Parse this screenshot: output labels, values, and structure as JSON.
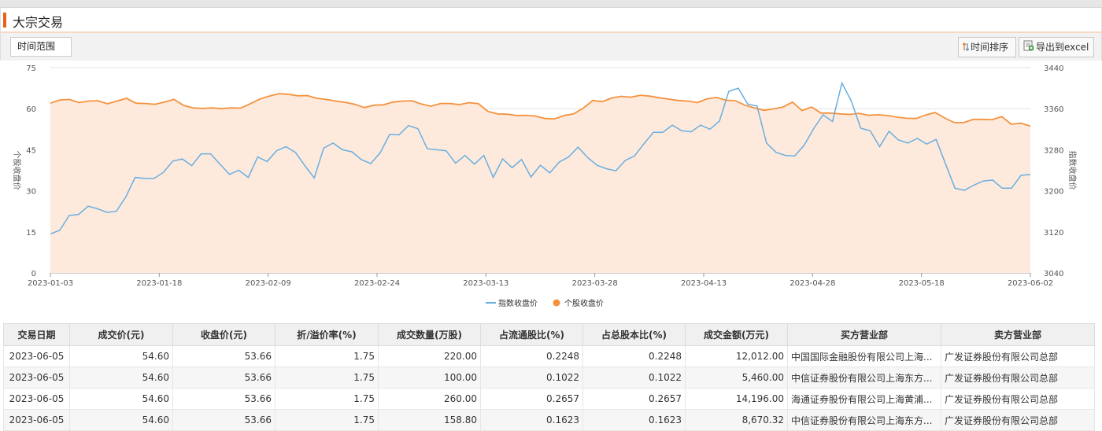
{
  "header": {
    "title": "大宗交易"
  },
  "toolbar": {
    "range_label": "时间范围",
    "sort_label": "时间排序",
    "export_label": "导出到excel"
  },
  "colors": {
    "accent": "#e8601a",
    "index_line": "#6aaee0",
    "stock_line": "#f5923e",
    "area_fill": "#fdeadc"
  },
  "chart_data": {
    "type": "line",
    "title": "",
    "ylabel_left": "个股收盘价",
    "ylabel_right": "指数收盘价",
    "ylim_left": [
      0,
      75
    ],
    "ylim_right": [
      3040,
      3440
    ],
    "yticks_left": [
      0,
      15,
      30,
      45,
      60,
      75
    ],
    "yticks_right": [
      3040,
      3120,
      3200,
      3280,
      3360,
      3440
    ],
    "xticks": [
      "2023-01-03",
      "2023-01-18",
      "2023-02-09",
      "2023-02-24",
      "2023-03-13",
      "2023-03-28",
      "2023-04-13",
      "2023-04-28",
      "2023-05-18",
      "2023-06-02"
    ],
    "legend_position": "bottom",
    "grid": true,
    "series": [
      {
        "name": "指数收盘价",
        "axis": "right",
        "values": [
          3116,
          3123,
          3152,
          3154,
          3170,
          3165,
          3158,
          3160,
          3188,
          3226,
          3224,
          3224,
          3236,
          3258,
          3262,
          3249,
          3272,
          3272,
          3252,
          3232,
          3240,
          3226,
          3266,
          3257,
          3278,
          3286,
          3275,
          3249,
          3225,
          3283,
          3293,
          3280,
          3276,
          3261,
          3253,
          3274,
          3310,
          3309,
          3327,
          3321,
          3282,
          3280,
          3278,
          3254,
          3269,
          3252,
          3269,
          3226,
          3262,
          3245,
          3261,
          3227,
          3250,
          3235,
          3256,
          3266,
          3285,
          3265,
          3250,
          3243,
          3239,
          3259,
          3268,
          3292,
          3314,
          3314,
          3328,
          3317,
          3315,
          3328,
          3320,
          3336,
          3394,
          3400,
          3369,
          3365,
          3293,
          3275,
          3269,
          3268,
          3289,
          3321,
          3348,
          3335,
          3410,
          3375,
          3322,
          3317,
          3286,
          3316,
          3299,
          3293,
          3302,
          3291,
          3300,
          3252,
          3205,
          3201,
          3211,
          3219,
          3221,
          3205,
          3205,
          3230,
          3232
        ]
      },
      {
        "name": "个股收盘价",
        "axis": "left",
        "values": [
          62,
          63.2,
          63.4,
          62.2,
          62.8,
          62.9,
          61.8,
          62.8,
          63.8,
          62,
          61.9,
          61.6,
          62.4,
          63.4,
          61.2,
          60.3,
          60.1,
          60.3,
          60,
          60.3,
          60.2,
          61.8,
          63.5,
          64.6,
          65.5,
          65.3,
          64.7,
          64.8,
          63.8,
          63.4,
          62.8,
          62.3,
          61.6,
          60.4,
          61.3,
          61.4,
          62.4,
          62.8,
          62.9,
          61.7,
          60.9,
          61.9,
          61.9,
          61.5,
          62.2,
          61.8,
          59,
          58.1,
          58,
          57.5,
          57.6,
          57.3,
          56.4,
          56.3,
          57.5,
          58.1,
          60.2,
          63,
          62.6,
          63.9,
          64.5,
          64.2,
          64.9,
          64.6,
          64,
          63.5,
          63,
          62.8,
          62.2,
          63.6,
          64.1,
          63.1,
          62.9,
          61.3,
          60.3,
          59.4,
          59.9,
          60.6,
          62.4,
          59.3,
          60.6,
          58.4,
          58.4,
          58.1,
          57.9,
          58.3,
          57.6,
          57.8,
          57.5,
          56.9,
          56.5,
          56.4,
          57.7,
          58.6,
          56.6,
          54.9,
          54.9,
          56.1,
          56.1,
          56.0,
          57.1,
          54.3,
          54.7,
          53.66
        ]
      }
    ]
  },
  "table": {
    "headers": [
      "交易日期",
      "成交价(元)",
      "收盘价(元)",
      "折/溢价率(%)",
      "成交数量(万股)",
      "占流通股比(%)",
      "占总股本比(%)",
      "成交金额(万元)",
      "买方营业部",
      "卖方营业部"
    ],
    "rows": [
      [
        "2023-06-05",
        "54.60",
        "53.66",
        "1.75",
        "220.00",
        "0.2248",
        "0.2248",
        "12,012.00",
        "中国国际金融股份有限公司上海...",
        "广发证券股份有限公司总部"
      ],
      [
        "2023-06-05",
        "54.60",
        "53.66",
        "1.75",
        "100.00",
        "0.1022",
        "0.1022",
        "5,460.00",
        "中信证券股份有限公司上海东方...",
        "广发证券股份有限公司总部"
      ],
      [
        "2023-06-05",
        "54.60",
        "53.66",
        "1.75",
        "260.00",
        "0.2657",
        "0.2657",
        "14,196.00",
        "海通证券股份有限公司上海黄浦...",
        "广发证券股份有限公司总部"
      ],
      [
        "2023-06-05",
        "54.60",
        "53.66",
        "1.75",
        "158.80",
        "0.1623",
        "0.1623",
        "8,670.32",
        "中信证券股份有限公司上海东方...",
        "广发证券股份有限公司总部"
      ]
    ]
  }
}
